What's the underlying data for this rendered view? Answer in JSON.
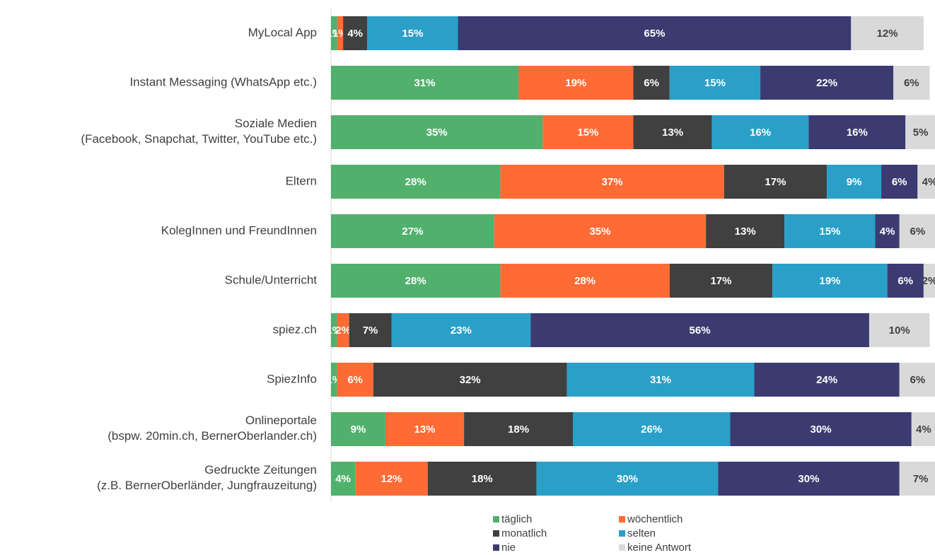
{
  "chart_data": {
    "type": "stacked-bar-horizontal",
    "categories": [
      "MyLocal App",
      "Instant Messaging (WhatsApp etc.)",
      "Soziale Medien\n(Facebook, Snapchat, Twitter, YouTube etc.)",
      "Eltern",
      "KolegInnen und FreundInnen",
      "Schule/Unterricht",
      "spiez.ch",
      "SpiezInfo",
      "Onlineportale\n(bspw. 20min.ch, BernerOberlander.ch)",
      "Gedruckte Zeitungen\n(z.B. BernerOberländer, Jungfrauzeitung)"
    ],
    "series": [
      {
        "name": "täglich",
        "color": "#52b06d",
        "values": [
          1,
          31,
          35,
          28,
          27,
          28,
          1,
          1,
          9,
          4
        ],
        "value_labels": [
          "1%",
          "31%",
          "35%",
          "28%",
          "27%",
          "28%",
          "1%",
          "1%",
          "9%",
          "4%"
        ]
      },
      {
        "name": "wöchentlich",
        "color": "#ff6b35",
        "values": [
          1,
          19,
          15,
          37,
          35,
          28,
          2,
          6,
          13,
          12
        ],
        "value_labels": [
          "1%",
          "19%",
          "15%",
          "37%",
          "35%",
          "28%",
          "2%",
          "6%",
          "13%",
          "12%"
        ]
      },
      {
        "name": "monatlich",
        "color": "#404040",
        "values": [
          4,
          6,
          13,
          17,
          13,
          17,
          7,
          32,
          18,
          18
        ],
        "value_labels": [
          "4%",
          "6%",
          "13%",
          "17%",
          "13%",
          "17%",
          "7%",
          "32%",
          "18%",
          "18%"
        ]
      },
      {
        "name": "selten",
        "color": "#2aa0c8",
        "values": [
          15,
          15,
          16,
          9,
          15,
          19,
          23,
          31,
          26,
          30
        ],
        "value_labels": [
          "15%",
          "15%",
          "16%",
          "9%",
          "15%",
          "19%",
          "23%",
          "31%",
          "26%",
          "30%"
        ]
      },
      {
        "name": "nie",
        "color": "#3b3b72",
        "values": [
          65,
          22,
          16,
          6,
          4,
          6,
          56,
          24,
          30,
          30
        ],
        "value_labels": [
          "65%",
          "22%",
          "16%",
          "6%",
          "4%",
          "6%",
          "56%",
          "24%",
          "30%",
          "30%"
        ]
      },
      {
        "name": "keine Antwort",
        "color": "#d9d9d9",
        "values": [
          12,
          6,
          5,
          4,
          6,
          2,
          10,
          6,
          4,
          7
        ],
        "value_labels": [
          "12%",
          "6%",
          "5%",
          "4%",
          "6%",
          "2%",
          "10%",
          "6%",
          "4%",
          "7%"
        ]
      }
    ]
  }
}
